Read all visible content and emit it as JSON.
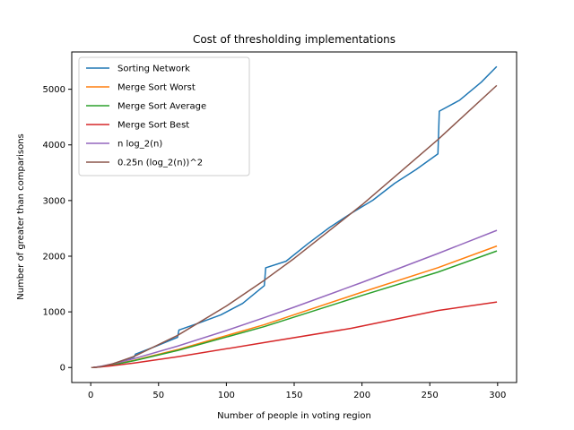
{
  "chart_data": {
    "type": "line",
    "title": "Cost of thresholding implementations",
    "xlabel": "Number of people in voting region",
    "ylabel": "Number of greater than comparisons",
    "xlim": [
      -14,
      314
    ],
    "ylim": [
      -270,
      5670
    ],
    "xticks": [
      0,
      50,
      100,
      150,
      200,
      250,
      300
    ],
    "yticks": [
      0,
      1000,
      2000,
      3000,
      4000,
      5000
    ],
    "grid": false,
    "legend_position": "top-left",
    "series": [
      {
        "name": "Sorting Network",
        "color": "#1f77b4",
        "points": [
          [
            1,
            0
          ],
          [
            2,
            1
          ],
          [
            4,
            5
          ],
          [
            8,
            19
          ],
          [
            16,
            63
          ],
          [
            32,
            191
          ],
          [
            33,
            240
          ],
          [
            48,
            381
          ],
          [
            64,
            543
          ],
          [
            65,
            672
          ],
          [
            80,
            801
          ],
          [
            96,
            946
          ],
          [
            112,
            1152
          ],
          [
            128,
            1471
          ],
          [
            129,
            1792
          ],
          [
            144,
            1909
          ],
          [
            160,
            2222
          ],
          [
            176,
            2515
          ],
          [
            192,
            2771
          ],
          [
            208,
            3006
          ],
          [
            224,
            3308
          ],
          [
            240,
            3560
          ],
          [
            256,
            3839
          ],
          [
            257,
            4606
          ],
          [
            272,
            4803
          ],
          [
            288,
            5128
          ],
          [
            299,
            5400
          ]
        ]
      },
      {
        "name": "Merge Sort Worst",
        "color": "#ff7f0e",
        "points": [
          [
            1,
            0
          ],
          [
            2,
            1
          ],
          [
            4,
            5
          ],
          [
            8,
            17
          ],
          [
            16,
            49
          ],
          [
            32,
            129
          ],
          [
            64,
            321
          ],
          [
            128,
            769
          ],
          [
            200,
            1354
          ],
          [
            256,
            1793
          ],
          [
            299,
            2179
          ]
        ]
      },
      {
        "name": "Merge Sort Average",
        "color": "#2ca02c",
        "points": [
          [
            1,
            0
          ],
          [
            2,
            1
          ],
          [
            4,
            5
          ],
          [
            8,
            16
          ],
          [
            16,
            46
          ],
          [
            32,
            122
          ],
          [
            64,
            306
          ],
          [
            128,
            735
          ],
          [
            200,
            1294
          ],
          [
            256,
            1714
          ],
          [
            299,
            2090
          ]
        ]
      },
      {
        "name": "Merge Sort Best",
        "color": "#d62728",
        "points": [
          [
            1,
            0
          ],
          [
            2,
            1
          ],
          [
            4,
            4
          ],
          [
            8,
            12
          ],
          [
            16,
            32
          ],
          [
            32,
            80
          ],
          [
            64,
            192
          ],
          [
            128,
            448
          ],
          [
            192,
            704
          ],
          [
            256,
            1024
          ],
          [
            299,
            1175
          ]
        ]
      },
      {
        "name": "n log_2(n)",
        "color": "#9467bd",
        "points": [
          [
            1,
            0
          ],
          [
            2,
            2
          ],
          [
            4,
            8
          ],
          [
            8,
            24
          ],
          [
            16,
            64
          ],
          [
            32,
            160
          ],
          [
            64,
            384
          ],
          [
            100,
            664
          ],
          [
            128,
            896
          ],
          [
            150,
            1084
          ],
          [
            200,
            1529
          ],
          [
            256,
            2048
          ],
          [
            299,
            2460
          ]
        ]
      },
      {
        "name": "0.25n (log_2(n))^2",
        "color": "#8c564b",
        "points": [
          [
            1,
            0
          ],
          [
            2,
            0.5
          ],
          [
            4,
            4
          ],
          [
            8,
            18
          ],
          [
            16,
            64
          ],
          [
            32,
            200
          ],
          [
            64,
            576
          ],
          [
            100,
            1104
          ],
          [
            128,
            1568
          ],
          [
            150,
            1960
          ],
          [
            200,
            2923
          ],
          [
            256,
            4096
          ],
          [
            299,
            5060
          ]
        ]
      }
    ]
  }
}
